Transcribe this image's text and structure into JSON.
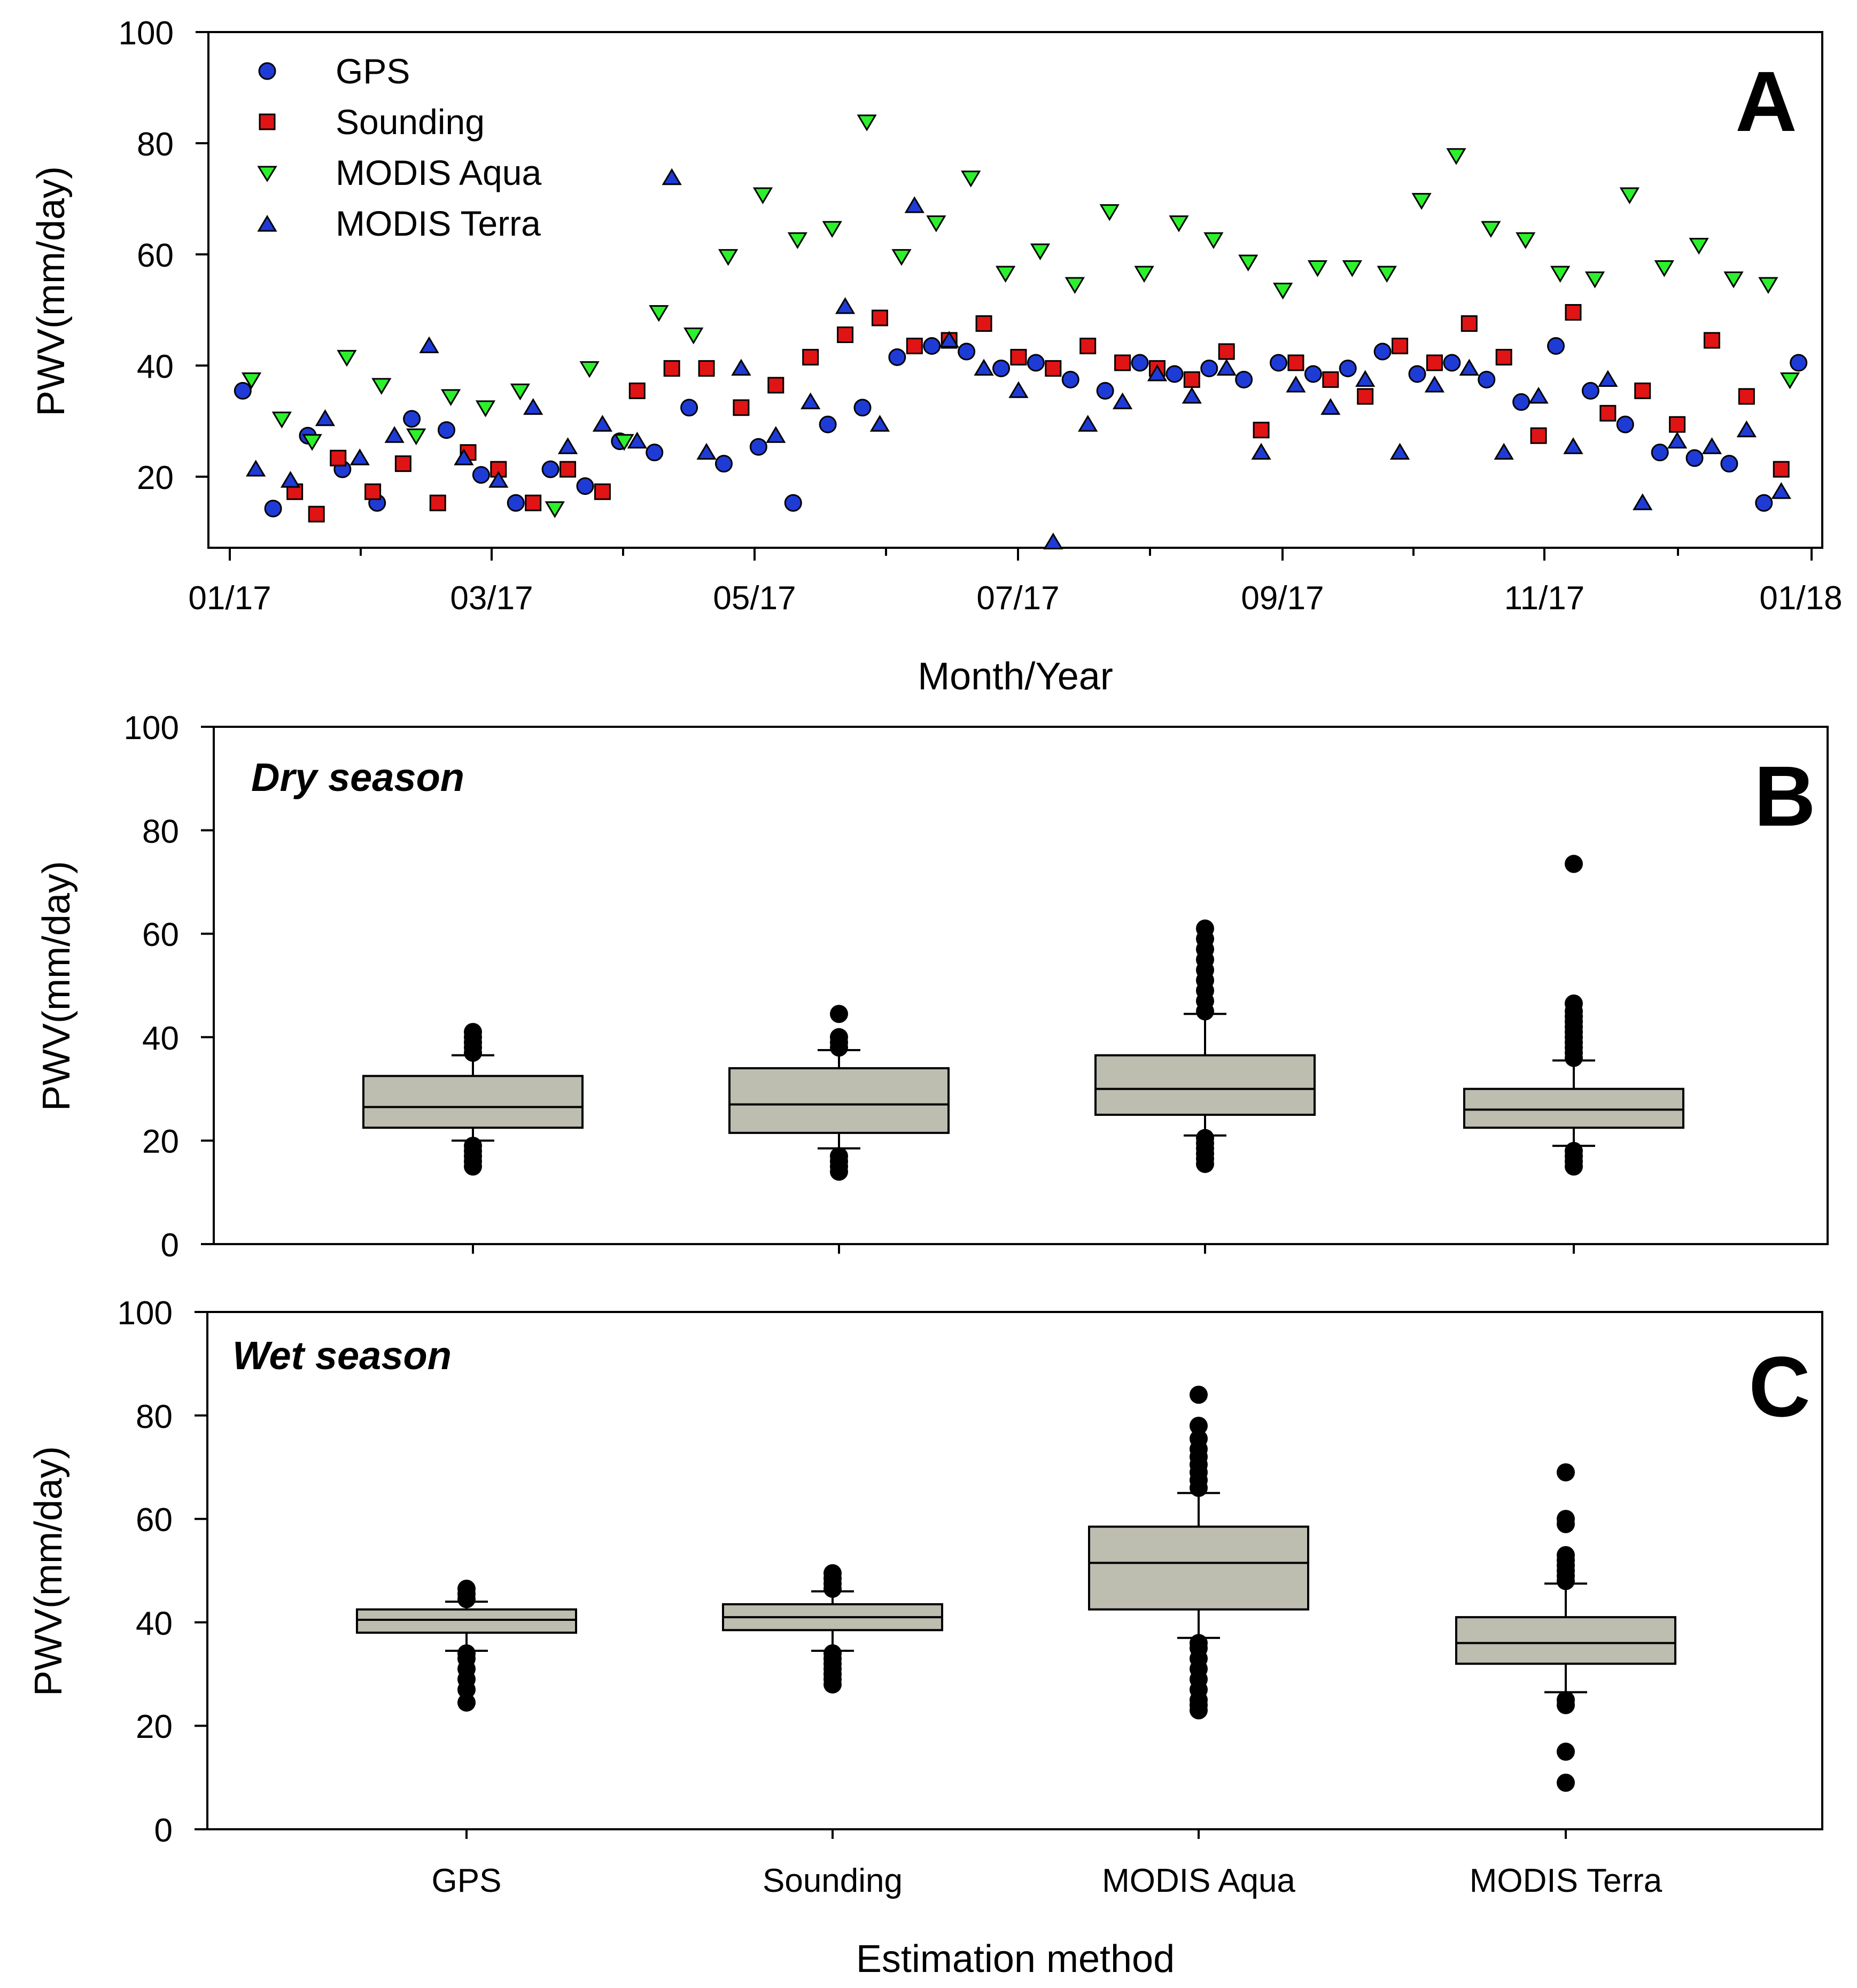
{
  "colors": {
    "gps": "#1f3bd6",
    "sounding": "#e01414",
    "aqua": "#2cf02c",
    "terra": "#1f3bd6",
    "box_fill": "#bdbdb0"
  },
  "panelA": {
    "letter": "A",
    "ylabel": "PWV(mm/day)",
    "xlabel": "Month/Year",
    "y_ticks": [
      "100",
      "80",
      "60",
      "40",
      "20"
    ],
    "x_ticks": [
      "01/17",
      "03/17",
      "05/17",
      "07/17",
      "09/17",
      "11/17",
      "01/18"
    ],
    "legend": [
      "GPS",
      "Sounding",
      "MODIS Aqua",
      "MODIS Terra"
    ]
  },
  "panelB": {
    "letter": "B",
    "season": "Dry season",
    "ylabel": "PWV(mm/day)",
    "y_ticks": [
      "100",
      "80",
      "60",
      "40",
      "20",
      "0"
    ]
  },
  "panelC": {
    "letter": "C",
    "season": "Wet season",
    "ylabel": "PWV(mm/day)",
    "xlabel": "Estimation method",
    "y_ticks": [
      "100",
      "80",
      "60",
      "40",
      "20",
      "0"
    ],
    "categories": [
      "GPS",
      "Sounding",
      "MODIS Aqua",
      "MODIS Terra"
    ]
  },
  "chart_data": [
    {
      "type": "scatter",
      "panel": "A",
      "title": "",
      "xlabel": "Month/Year",
      "ylabel": "PWV(mm/day)",
      "xlim": [
        "2017-01-01",
        "2018-01-01"
      ],
      "ylim": [
        8,
        100
      ],
      "x_ticks": [
        "01/17",
        "03/17",
        "05/17",
        "07/17",
        "09/17",
        "11/17",
        "01/18"
      ],
      "legend_position": "top-left",
      "series": [
        {
          "name": "GPS",
          "marker": "circle",
          "x": [
            3,
            10,
            18,
            26,
            34,
            42,
            50,
            58,
            66,
            74,
            82,
            90,
            98,
            106,
            114,
            122,
            130,
            138,
            146,
            154,
            162,
            170,
            178,
            186,
            194,
            202,
            210,
            218,
            226,
            234,
            242,
            250,
            258,
            266,
            274,
            282,
            290,
            298,
            306,
            314,
            322,
            330,
            338,
            346,
            354,
            362
          ],
          "values": [
            36,
            15,
            28,
            22,
            16,
            31,
            29,
            21,
            16,
            22,
            19,
            27,
            25,
            33,
            23,
            26,
            16,
            30,
            33,
            42,
            44,
            43,
            40,
            41,
            38,
            36,
            41,
            39,
            40,
            38,
            41,
            39,
            40,
            43,
            39,
            41,
            38,
            34,
            44,
            36,
            30,
            25,
            24,
            23,
            16,
            41
          ]
        },
        {
          "name": "Sounding",
          "marker": "square",
          "x": [
            15,
            20,
            25,
            33,
            40,
            48,
            55,
            62,
            70,
            78,
            86,
            94,
            102,
            110,
            118,
            126,
            134,
            142,
            150,
            158,
            166,
            174,
            182,
            190,
            198,
            206,
            214,
            222,
            230,
            238,
            246,
            254,
            262,
            270,
            278,
            286,
            294,
            302,
            310,
            318,
            326,
            334,
            342,
            350,
            358
          ],
          "values": [
            18,
            14,
            24,
            18,
            23,
            16,
            25,
            22,
            16,
            22,
            18,
            36,
            40,
            40,
            33,
            37,
            42,
            46,
            49,
            44,
            45,
            48,
            42,
            40,
            44,
            41,
            40,
            38,
            43,
            29,
            41,
            38,
            35,
            44,
            41,
            48,
            42,
            28,
            50,
            32,
            36,
            30,
            45,
            35,
            22
          ]
        },
        {
          "name": "MODIS Aqua",
          "marker": "triangle-down",
          "x": [
            5,
            12,
            19,
            27,
            35,
            43,
            51,
            59,
            67,
            75,
            83,
            91,
            99,
            107,
            115,
            123,
            131,
            139,
            147,
            155,
            163,
            171,
            179,
            187,
            195,
            203,
            211,
            219,
            227,
            235,
            243,
            251,
            259,
            267,
            275,
            283,
            291,
            299,
            307,
            315,
            323,
            331,
            339,
            347,
            355,
            360
          ],
          "values": [
            38,
            31,
            27,
            42,
            37,
            28,
            35,
            33,
            36,
            15,
            40,
            27,
            50,
            46,
            60,
            71,
            63,
            65,
            84,
            60,
            66,
            74,
            57,
            61,
            55,
            68,
            57,
            66,
            63,
            59,
            54,
            58,
            58,
            57,
            70,
            78,
            65,
            63,
            57,
            56,
            71,
            58,
            62,
            56,
            55,
            38
          ]
        },
        {
          "name": "MODIS Terra",
          "marker": "triangle-up",
          "x": [
            6,
            14,
            22,
            30,
            38,
            46,
            54,
            62,
            70,
            78,
            86,
            94,
            102,
            110,
            118,
            126,
            134,
            142,
            150,
            158,
            166,
            174,
            182,
            190,
            198,
            206,
            214,
            222,
            230,
            238,
            246,
            254,
            262,
            270,
            278,
            286,
            294,
            302,
            310,
            318,
            326,
            334,
            342,
            350,
            358
          ],
          "values": [
            22,
            20,
            31,
            24,
            28,
            44,
            24,
            20,
            33,
            26,
            30,
            27,
            74,
            25,
            40,
            28,
            34,
            51,
            30,
            69,
            45,
            40,
            36,
            9,
            30,
            34,
            39,
            35,
            40,
            25,
            37,
            33,
            38,
            25,
            37,
            40,
            25,
            35,
            26,
            38,
            16,
            27,
            26,
            29,
            18
          ]
        }
      ]
    },
    {
      "type": "box",
      "panel": "B",
      "title": "Dry season",
      "xlabel": "",
      "ylabel": "PWV(mm/day)",
      "ylim": [
        0,
        100
      ],
      "categories": [
        "GPS",
        "Sounding",
        "MODIS Aqua",
        "MODIS Terra"
      ],
      "boxes": [
        {
          "q1": 22.5,
          "median": 26.5,
          "q3": 32.5,
          "whisker_low": 20,
          "whisker_high": 36.5,
          "outliers": [
            15,
            16,
            17,
            18,
            19,
            37,
            38,
            39,
            40,
            41
          ]
        },
        {
          "q1": 21.5,
          "median": 27,
          "q3": 34,
          "whisker_low": 18.5,
          "whisker_high": 37.5,
          "outliers": [
            14,
            15,
            16,
            17,
            38,
            39,
            40,
            44.5
          ]
        },
        {
          "q1": 25,
          "median": 30,
          "q3": 36.5,
          "whisker_low": 21,
          "whisker_high": 44.5,
          "outliers": [
            15.5,
            16.5,
            17.5,
            18.5,
            19.5,
            20.5,
            45,
            47,
            49,
            51,
            53,
            55,
            57,
            59,
            61
          ]
        },
        {
          "q1": 22.5,
          "median": 26,
          "q3": 30,
          "whisker_low": 19,
          "whisker_high": 35.5,
          "outliers": [
            15,
            16,
            17,
            18,
            36,
            37,
            38,
            39,
            40,
            41,
            42,
            43,
            44,
            45,
            46.5,
            73.5
          ]
        }
      ]
    },
    {
      "type": "box",
      "panel": "C",
      "title": "Wet season",
      "xlabel": "Estimation method",
      "ylabel": "PWV(mm/day)",
      "ylim": [
        0,
        100
      ],
      "categories": [
        "GPS",
        "Sounding",
        "MODIS Aqua",
        "MODIS Terra"
      ],
      "boxes": [
        {
          "q1": 38,
          "median": 40.5,
          "q3": 42.5,
          "whisker_low": 34.5,
          "whisker_high": 44,
          "outliers": [
            24.5,
            27,
            29,
            31,
            33,
            34,
            44.5,
            45.5,
            46.5
          ]
        },
        {
          "q1": 38.5,
          "median": 41,
          "q3": 43.5,
          "whisker_low": 34.5,
          "whisker_high": 46,
          "outliers": [
            28,
            29,
            30,
            31,
            32,
            33,
            34,
            46.5,
            47.5,
            48.5,
            49.5
          ]
        },
        {
          "q1": 42.5,
          "median": 51.5,
          "q3": 58.5,
          "whisker_low": 37,
          "whisker_high": 65,
          "outliers": [
            23,
            24,
            25,
            27,
            29,
            31,
            33,
            35,
            36,
            66,
            67.5,
            69,
            70.5,
            72,
            73.5,
            75.5,
            78,
            84
          ]
        },
        {
          "q1": 32,
          "median": 36,
          "q3": 41,
          "whisker_low": 26.5,
          "whisker_high": 47.5,
          "outliers": [
            9,
            15,
            24,
            25,
            48,
            49,
            50,
            51,
            52,
            53,
            59,
            60,
            69
          ]
        }
      ]
    }
  ]
}
